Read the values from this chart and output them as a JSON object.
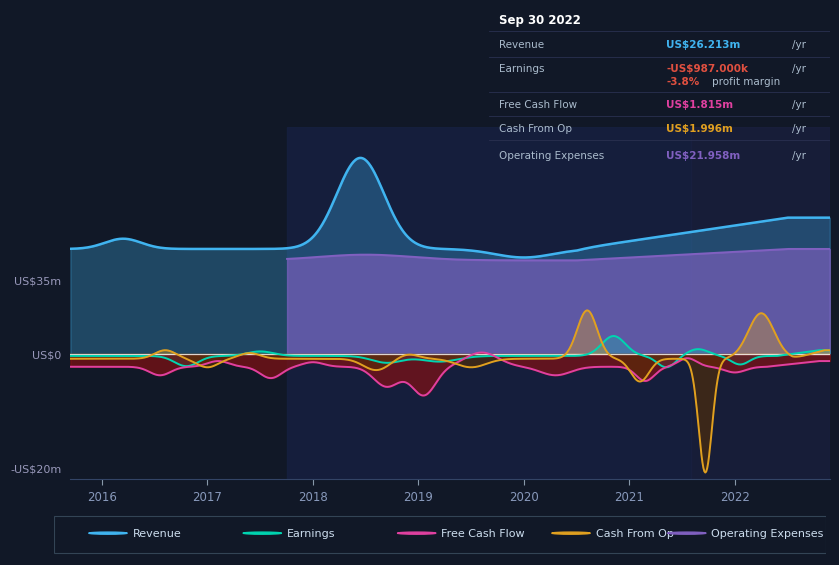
{
  "bg_color": "#111827",
  "chart_bg": "#111827",
  "y_label_top": "US$35m",
  "y_label_zero": "US$0",
  "y_label_bottom": "-US$20m",
  "ylim": [
    -22,
    40
  ],
  "xlim_start": 2015.7,
  "xlim_end": 2022.9,
  "x_ticks": [
    2016,
    2017,
    2018,
    2019,
    2020,
    2021,
    2022
  ],
  "colors": {
    "revenue": "#40b4f0",
    "earnings": "#00d4b0",
    "free_cash_flow": "#e040a0",
    "cash_from_op": "#e0a020",
    "operating_expenses": "#8060c0"
  },
  "info_box": {
    "date": "Sep 30 2022",
    "revenue_label": "Revenue",
    "revenue_value": "US$26.213m",
    "revenue_color": "#40b4f0",
    "earnings_label": "Earnings",
    "earnings_value": "-US$987.000k",
    "earnings_color": "#e05040",
    "margin_value": "-3.8%",
    "margin_color": "#e05040",
    "fcf_label": "Free Cash Flow",
    "fcf_value": "US$1.815m",
    "fcf_color": "#e040a0",
    "cashop_label": "Cash From Op",
    "cashop_value": "US$1.996m",
    "cashop_color": "#e0a020",
    "opex_label": "Operating Expenses",
    "opex_value": "US$21.958m",
    "opex_color": "#8060c0"
  },
  "legend_items": [
    {
      "label": "Revenue",
      "color": "#40b4f0"
    },
    {
      "label": "Earnings",
      "color": "#00d4b0"
    },
    {
      "label": "Free Cash Flow",
      "color": "#e040a0"
    },
    {
      "label": "Cash From Op",
      "color": "#e0a020"
    },
    {
      "label": "Operating Expenses",
      "color": "#8060c0"
    }
  ],
  "opex_start": 2017.75,
  "dark_region_start": 2021.58,
  "dark_region_end": 2022.9
}
